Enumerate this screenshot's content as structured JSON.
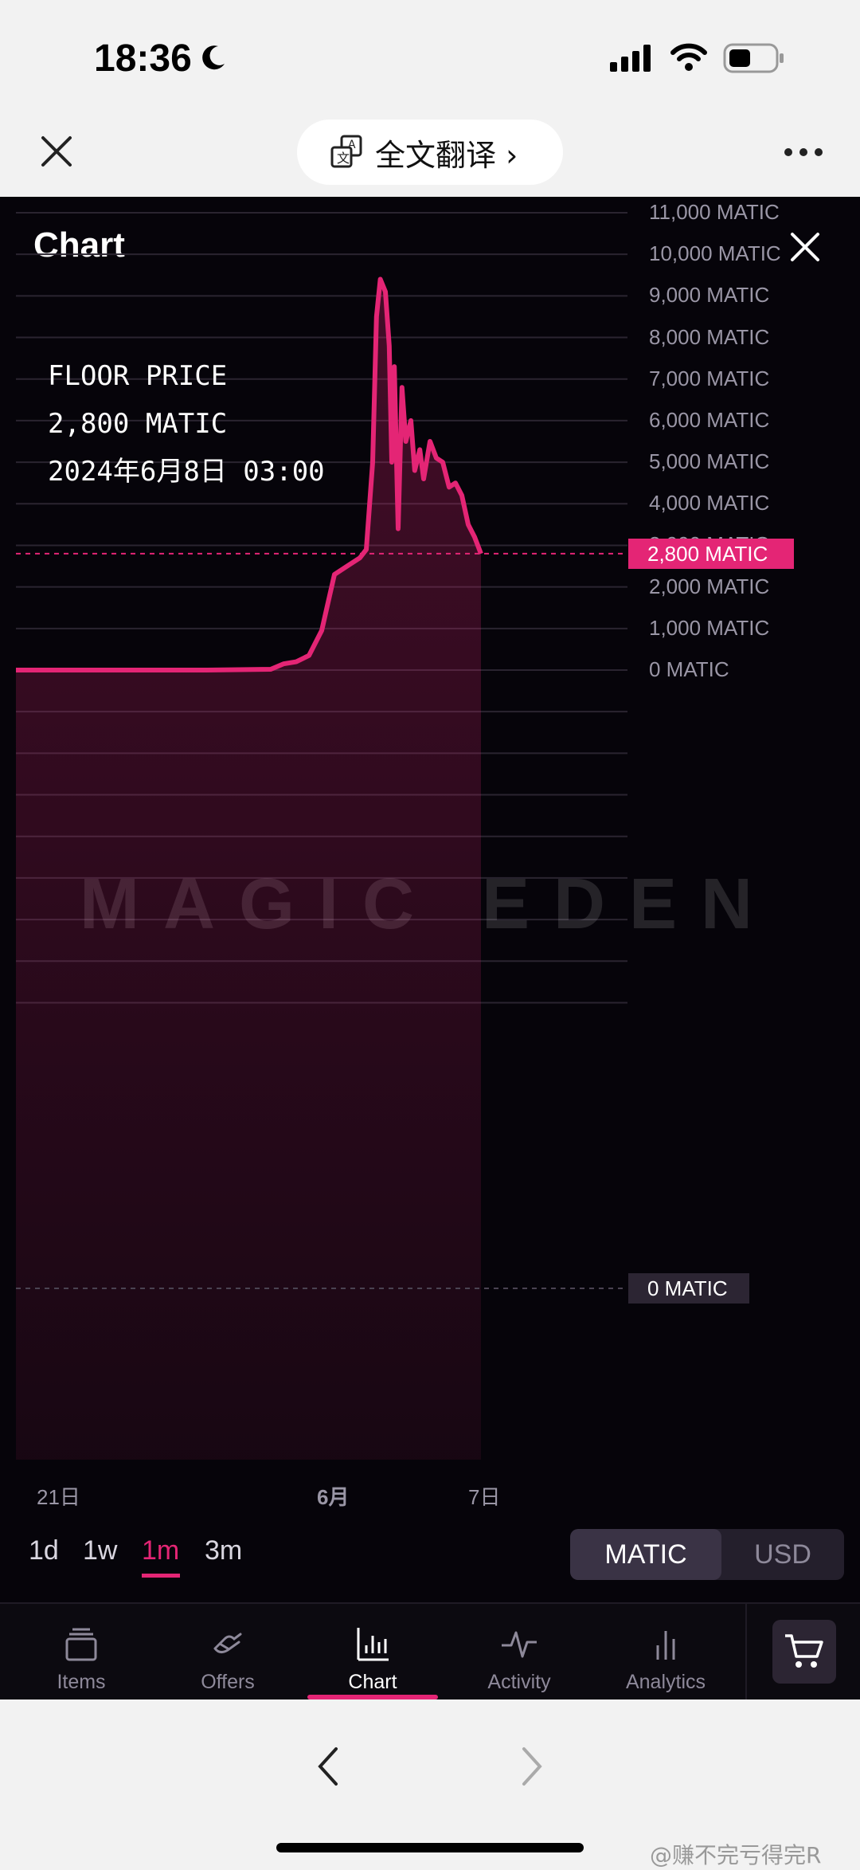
{
  "status_bar": {
    "time": "18:36"
  },
  "browser": {
    "translate_label": "全文翻译 ›"
  },
  "chart_panel": {
    "title": "Chart",
    "tooltip": {
      "metric": "FLOOR PRICE",
      "value": "2,800 MATIC",
      "datetime": "2024年6月8日 03:00"
    },
    "current_price_badge": "2,800 MATIC",
    "zero_badge": "0 MATIC",
    "watermark": "MAGIC EDEN"
  },
  "chart_data": {
    "type": "area",
    "y_ticks": [
      "11,000 MATIC",
      "10,000 MATIC",
      "9,000 MATIC",
      "8,000 MATIC",
      "7,000 MATIC",
      "6,000 MATIC",
      "5,000 MATIC",
      "4,000 MATIC",
      "3,000 MATIC",
      "2,000 MATIC",
      "1,000 MATIC",
      "0 MATIC"
    ],
    "x_ticks": [
      "21日",
      "6月",
      "7日"
    ],
    "ylim": [
      0,
      11000
    ],
    "series_color": "#e42575",
    "current_value": 2800,
    "points": [
      [
        0,
        0
      ],
      [
        8,
        0
      ],
      [
        15,
        0
      ],
      [
        20,
        20
      ],
      [
        21,
        150
      ],
      [
        22,
        200
      ],
      [
        23,
        350
      ],
      [
        24,
        950
      ],
      [
        25,
        2300
      ],
      [
        26,
        2500
      ],
      [
        27,
        2700
      ],
      [
        27.5,
        2900
      ],
      [
        28,
        5000
      ],
      [
        28.3,
        8500
      ],
      [
        28.6,
        9400
      ],
      [
        29,
        9100
      ],
      [
        29.3,
        7800
      ],
      [
        29.5,
        5000
      ],
      [
        29.7,
        7300
      ],
      [
        30,
        3400
      ],
      [
        30.3,
        6800
      ],
      [
        30.6,
        5500
      ],
      [
        31,
        6000
      ],
      [
        31.3,
        4800
      ],
      [
        31.7,
        5300
      ],
      [
        32,
        4600
      ],
      [
        32.5,
        5500
      ],
      [
        33,
        5100
      ],
      [
        33.5,
        5000
      ],
      [
        34,
        4400
      ],
      [
        34.5,
        4500
      ],
      [
        35,
        4200
      ],
      [
        35.5,
        3500
      ],
      [
        36,
        3200
      ],
      [
        36.5,
        2800
      ]
    ],
    "x_range": [
      0,
      48
    ]
  },
  "controls": {
    "ranges": [
      "1d",
      "1w",
      "1m",
      "3m"
    ],
    "active_range": "1m",
    "currency": {
      "on": "MATIC",
      "off": "USD"
    }
  },
  "tabs": [
    "Items",
    "Offers",
    "Chart",
    "Activity",
    "Analytics"
  ],
  "active_tab": "Chart",
  "footer": {
    "watermark": "@赚不完亏得完R"
  }
}
